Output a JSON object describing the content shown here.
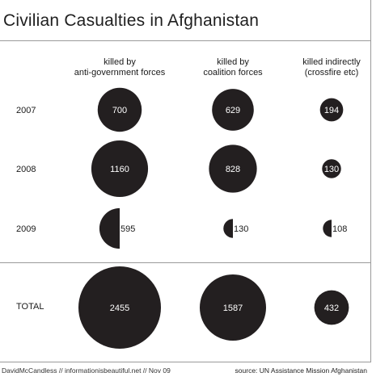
{
  "chart_data": {
    "type": "bubble",
    "title": "Civilian Casualties in Afghanistan",
    "columns": [
      {
        "label_lines": [
          "killed by",
          "anti-government forces"
        ]
      },
      {
        "label_lines": [
          "killed by",
          "coalition forces"
        ]
      },
      {
        "label_lines": [
          "killed indirectly",
          "(crossfire etc)"
        ]
      }
    ],
    "rows": [
      {
        "label": "2007",
        "values": [
          700,
          629,
          194
        ],
        "partial": false
      },
      {
        "label": "2008",
        "values": [
          1160,
          828,
          130
        ],
        "partial": false
      },
      {
        "label": "2009",
        "values": [
          595,
          130,
          108
        ],
        "partial": true
      },
      {
        "label": "TOTAL",
        "values": [
          2455,
          1587,
          432
        ],
        "partial": false
      }
    ],
    "colors": {
      "bubble": "#231f20",
      "label_on_bubble": "#ffffff",
      "label_off_bubble": "#1a1a1a"
    }
  },
  "footer": {
    "credit": "DavidMcCandless // informationisbeautiful.net // Nov 09",
    "source": "source: UN Assistance Mission Afghanistan"
  }
}
